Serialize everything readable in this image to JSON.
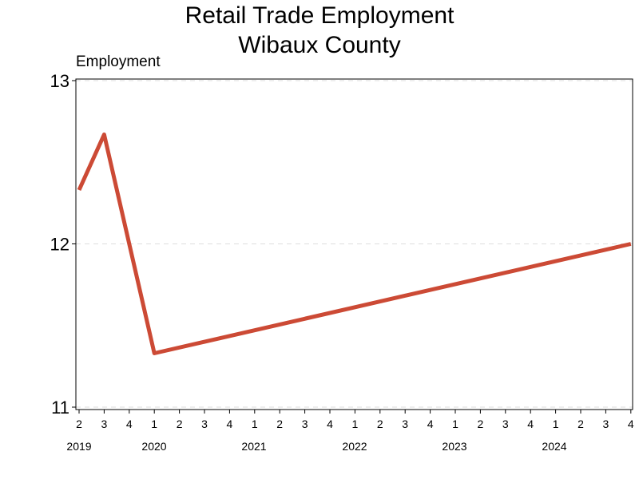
{
  "chart_data": {
    "type": "line",
    "title": "Retail Trade Employment",
    "subtitle": "Wibaux County",
    "ylabel": "Employment",
    "xlabel": "",
    "ylim": [
      11,
      13
    ],
    "yticks": [
      11,
      12,
      13
    ],
    "grid": "horizontal dashed",
    "x": [
      "2019 Q2",
      "2019 Q3",
      "2020 Q1",
      "2024 Q4"
    ],
    "x_quarters": [
      "2",
      "3",
      "4",
      "1",
      "2",
      "3",
      "4",
      "1",
      "2",
      "3",
      "4",
      "1",
      "2",
      "3",
      "4",
      "1",
      "2",
      "3",
      "4",
      "1",
      "2",
      "3",
      "4"
    ],
    "x_years": [
      "2019",
      "2020",
      "2021",
      "2022",
      "2023",
      "2024"
    ],
    "series": [
      {
        "values": [
          12.33,
          12.67,
          11.33,
          12.0
        ],
        "color": "#cc4a35"
      }
    ]
  }
}
